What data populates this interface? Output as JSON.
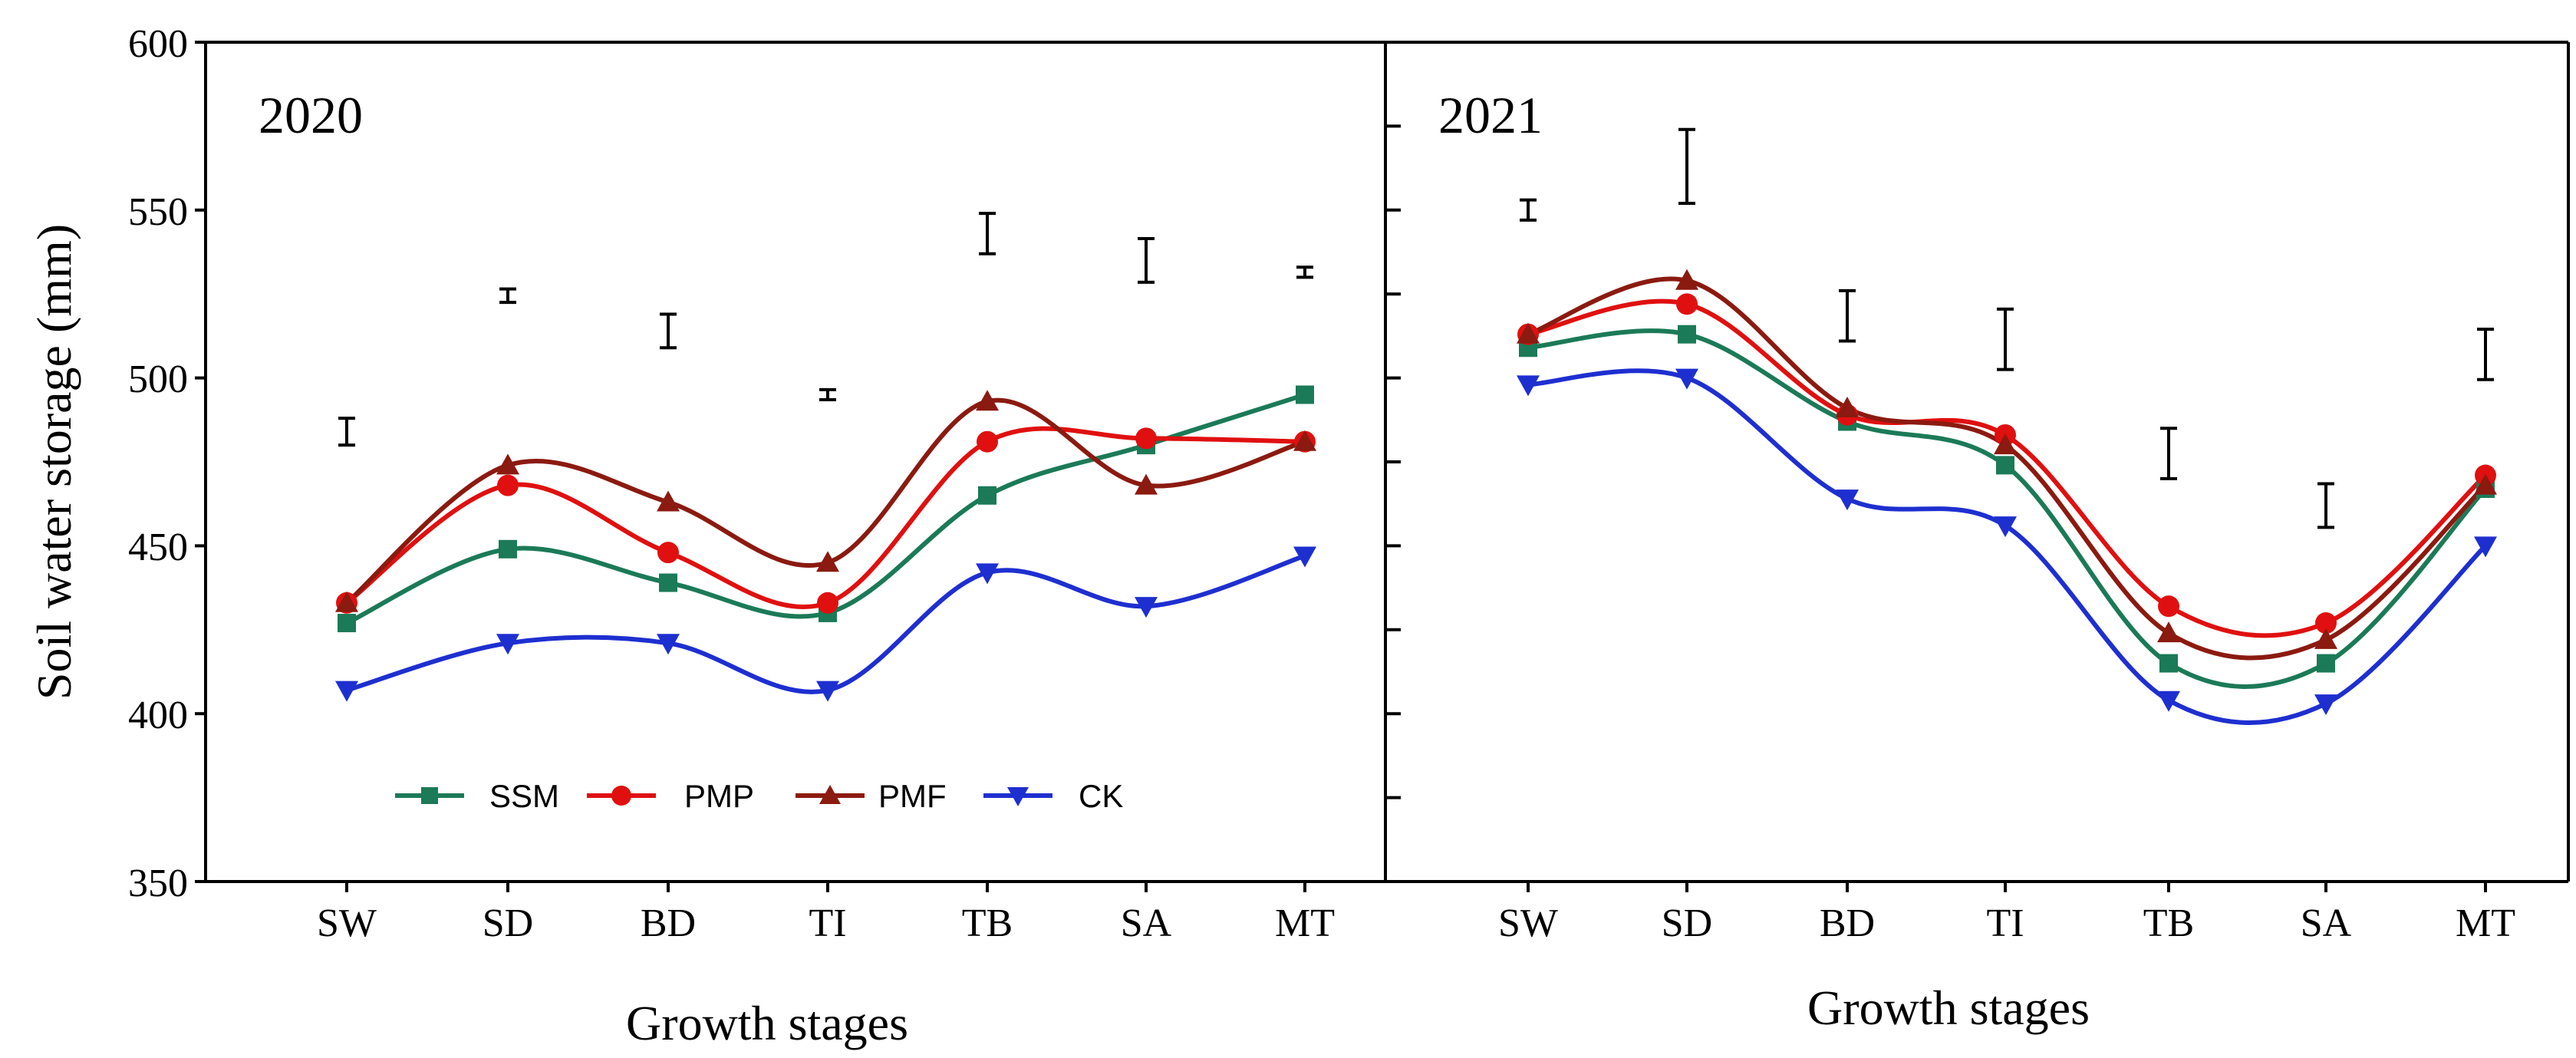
{
  "chart_data": {
    "type": "line",
    "ylabel": "Soil water storage (mm)",
    "xlabel": "Growth stages",
    "ylim": [
      350,
      600
    ],
    "yticks": [
      350,
      400,
      450,
      500,
      550,
      600
    ],
    "y_tick_labels": [
      "350",
      "400",
      "450",
      "500",
      "550",
      "600"
    ],
    "categories": [
      "SW",
      "SD",
      "BD",
      "TI",
      "TB",
      "SA",
      "MT"
    ],
    "legend": {
      "placement": "bottom-left of left panel",
      "entries": [
        {
          "name": "SSM",
          "color": "#1B7A57",
          "marker": "square"
        },
        {
          "name": "PMP",
          "color": "#E01010",
          "marker": "circle"
        },
        {
          "name": "PMF",
          "color": "#8B1A10",
          "marker": "triangle-up"
        },
        {
          "name": "CK",
          "color": "#1E2FD0",
          "marker": "triangle-down"
        }
      ]
    },
    "panels": [
      {
        "title": "2020",
        "xlabel": "Growth stages",
        "series": [
          {
            "name": "SSM",
            "values": [
              427,
              449,
              439,
              430,
              465,
              480,
              495
            ]
          },
          {
            "name": "PMP",
            "values": [
              433,
              468,
              448,
              433,
              481,
              482,
              481
            ]
          },
          {
            "name": "PMF",
            "values": [
              433,
              474,
              463,
              445,
              493,
              468,
              481
            ]
          },
          {
            "name": "CK",
            "values": [
              407,
              421,
              421,
              407,
              442,
              432,
              447
            ]
          }
        ],
        "error_bars": [
          {
            "center": 484,
            "half_range": 4
          },
          {
            "center": 524.5,
            "half_range": 2
          },
          {
            "center": 514,
            "half_range": 5
          },
          {
            "center": 495,
            "half_range": 1.5
          },
          {
            "center": 543,
            "half_range": 6
          },
          {
            "center": 535,
            "half_range": 6.5
          },
          {
            "center": 531.5,
            "half_range": 1.5
          }
        ]
      },
      {
        "title": "2021",
        "xlabel": "Growth stages",
        "series": [
          {
            "name": "SSM",
            "values": [
              509,
              513,
              487,
              474,
              415,
              415,
              467
            ]
          },
          {
            "name": "PMP",
            "values": [
              513,
              522,
              489,
              483,
              432,
              427,
              471
            ]
          },
          {
            "name": "PMF",
            "values": [
              513,
              529,
              491,
              480,
              424,
              422,
              468
            ]
          },
          {
            "name": "CK",
            "values": [
              498,
              500,
              464,
              456,
              404,
              403,
              450
            ]
          }
        ],
        "error_bars": [
          {
            "center": 550,
            "half_range": 3
          },
          {
            "center": 563,
            "half_range": 11
          },
          {
            "center": 518.5,
            "half_range": 7.5
          },
          {
            "center": 511.5,
            "half_range": 9
          },
          {
            "center": 477.5,
            "half_range": 7.5
          },
          {
            "center": 462,
            "half_range": 6.5
          },
          {
            "center": 507,
            "half_range": 7.5
          }
        ]
      }
    ]
  }
}
